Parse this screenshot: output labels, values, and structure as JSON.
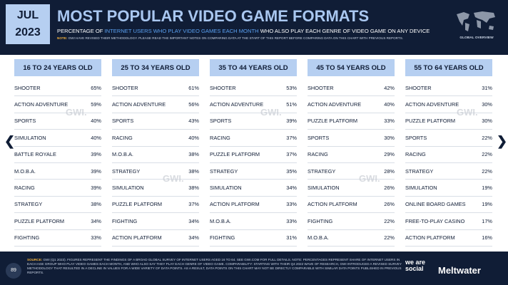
{
  "header": {
    "month": "JUL",
    "year": "2023",
    "title": "MOST POPULAR VIDEO GAME FORMATS",
    "subtitle": {
      "before": "PERCENTAGE OF ",
      "highlight": "INTERNET USERS WHO PLAY VIDEO GAMES EACH MONTH",
      "after": " WHO ALSO PLAY EACH GENRE OF VIDEO GAME ON ANY DEVICE"
    },
    "note_label": "NOTE:",
    "note": "GWI HAVE REVISED THEIR METHODOLOGY. PLEASE READ THE IMPORTANT NOTES ON COMPARING DATA AT THE START OF THIS REPORT BEFORE COMPARING DATA ON THIS CHART WITH PREVIOUS REPORTS.",
    "map_caption": "GLOBAL OVERVIEW"
  },
  "watermark": "GWI.",
  "columns": [
    {
      "title": "16 TO 24 YEARS OLD",
      "rows": [
        [
          "SHOOTER",
          "65%"
        ],
        [
          "ACTION ADVENTURE",
          "59%"
        ],
        [
          "SPORTS",
          "40%"
        ],
        [
          "SIMULATION",
          "40%"
        ],
        [
          "BATTLE ROYALE",
          "39%"
        ],
        [
          "M.O.B.A.",
          "39%"
        ],
        [
          "RACING",
          "39%"
        ],
        [
          "STRATEGY",
          "38%"
        ],
        [
          "PUZZLE PLATFORM",
          "34%"
        ],
        [
          "FIGHTING",
          "33%"
        ]
      ]
    },
    {
      "title": "25 TO 34 YEARS OLD",
      "rows": [
        [
          "SHOOTER",
          "61%"
        ],
        [
          "ACTION ADVENTURE",
          "56%"
        ],
        [
          "SPORTS",
          "43%"
        ],
        [
          "RACING",
          "40%"
        ],
        [
          "M.O.B.A.",
          "38%"
        ],
        [
          "STRATEGY",
          "38%"
        ],
        [
          "SIMULATION",
          "38%"
        ],
        [
          "PUZZLE PLATFORM",
          "37%"
        ],
        [
          "FIGHTING",
          "34%"
        ],
        [
          "ACTION PLATFORM",
          "34%"
        ]
      ]
    },
    {
      "title": "35 TO 44 YEARS OLD",
      "rows": [
        [
          "SHOOTER",
          "53%"
        ],
        [
          "ACTION ADVENTURE",
          "51%"
        ],
        [
          "SPORTS",
          "39%"
        ],
        [
          "RACING",
          "37%"
        ],
        [
          "PUZZLE PLATFORM",
          "37%"
        ],
        [
          "STRATEGY",
          "35%"
        ],
        [
          "SIMULATION",
          "34%"
        ],
        [
          "ACTION PLATFORM",
          "33%"
        ],
        [
          "M.O.B.A.",
          "33%"
        ],
        [
          "FIGHTING",
          "31%"
        ]
      ]
    },
    {
      "title": "45 TO 54 YEARS OLD",
      "rows": [
        [
          "SHOOTER",
          "42%"
        ],
        [
          "ACTION ADVENTURE",
          "40%"
        ],
        [
          "PUZZLE PLATFORM",
          "33%"
        ],
        [
          "SPORTS",
          "30%"
        ],
        [
          "RACING",
          "29%"
        ],
        [
          "STRATEGY",
          "28%"
        ],
        [
          "SIMULATION",
          "26%"
        ],
        [
          "ACTION PLATFORM",
          "26%"
        ],
        [
          "FIGHTING",
          "22%"
        ],
        [
          "M.O.B.A.",
          "22%"
        ]
      ]
    },
    {
      "title": "55 TO 64 YEARS OLD",
      "rows": [
        [
          "SHOOTER",
          "31%"
        ],
        [
          "ACTION ADVENTURE",
          "30%"
        ],
        [
          "PUZZLE PLATFORM",
          "30%"
        ],
        [
          "SPORTS",
          "22%"
        ],
        [
          "RACING",
          "22%"
        ],
        [
          "STRATEGY",
          "22%"
        ],
        [
          "SIMULATION",
          "19%"
        ],
        [
          "ONLINE BOARD GAMES",
          "19%"
        ],
        [
          "FREE-TO-PLAY CASINO",
          "17%"
        ],
        [
          "ACTION PLATFORM",
          "16%"
        ]
      ]
    }
  ],
  "footer": {
    "source_label": "SOURCE:",
    "source": "GWI (Q1 2023). FIGURES REPRESENT THE FINDINGS OF A BROAD GLOBAL SURVEY OF INTERNET USERS AGED 16 TO 64. SEE GWI.COM FOR FULL DETAILS. NOTE: PERCENTAGES REPRESENT SHARE OF INTERNET USERS IN EACH AGE GROUP WHO PLAY VIDEO GAMES EACH MONTH, AND WHO ALSO SAY THEY PLAY EACH GENRE OF VIDEO GAME. COMPARABILITY: STARTING WITH THEIR Q4 2022 WAVE OF RESEARCH, GWI INTRODUCED A REVISED SURVEY METHODOLOGY THAT RESULTED IN A DECLINE IN VALUES FOR A WIDE VARIETY OF DATA POINTS. AS A RESULT, DATA POINTS ON THIS CHART MAY NOT BE DIRECTLY COMPARABLE WITH SIMILAR DATA POINTS PUBLISHED IN PREVIOUS REPORTS.",
    "page": "89",
    "brand1": "we are social",
    "brand2": "Meltwater"
  }
}
